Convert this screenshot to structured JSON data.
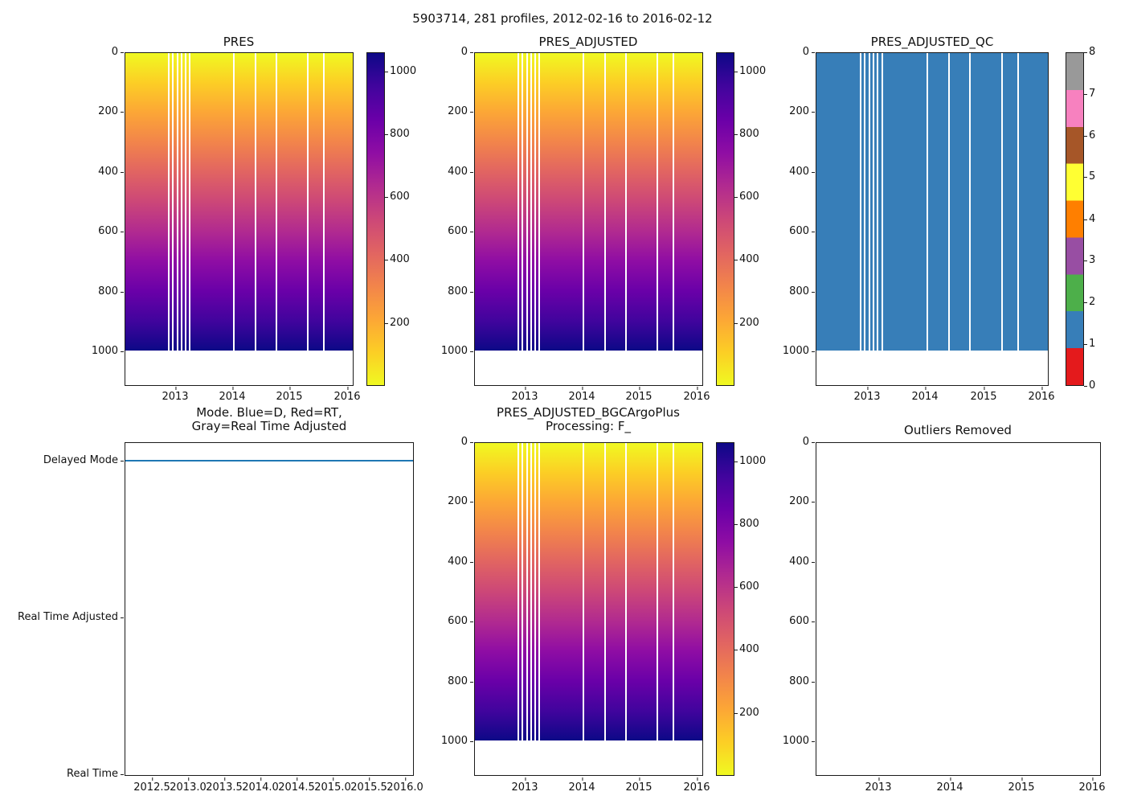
{
  "figure": {
    "suptitle": "5903714, 281 profiles, 2012-02-16 to 2016-02-12"
  },
  "palette": {
    "plasma_stops": [
      "#f0f921",
      "#fcce25",
      "#fca636",
      "#f2844b",
      "#e16462",
      "#cc4778",
      "#b12a90",
      "#8f0da4",
      "#6a00a8",
      "#41049d",
      "#0d0887"
    ],
    "qc_flag_colors": [
      "#e41a1c",
      "#377eb8",
      "#4daf4a",
      "#984ea3",
      "#ff7f00",
      "#ffff33",
      "#a65628",
      "#f781bf",
      "#999999"
    ],
    "mode_line_color": "#1f77b4",
    "qc_fill_color": "#377eb8"
  },
  "chart_data": [
    {
      "id": "pres",
      "type": "heatmap",
      "title": "PRES",
      "x_range": [
        2012.12,
        2016.12
      ],
      "xticks": [
        "2013",
        "2014",
        "2015",
        "2016"
      ],
      "y_range": [
        1115,
        0
      ],
      "y_inverted": true,
      "yticks": [
        "0",
        "200",
        "400",
        "600",
        "800",
        "1000"
      ],
      "colormap": "plasma",
      "colorbar_ticks": [
        "200",
        "400",
        "600",
        "800",
        "1000"
      ],
      "value_range": [
        0,
        1060
      ],
      "max_plotted_depth": 1000,
      "gaps_pct": [
        18.8,
        20.6,
        22.6,
        24.4,
        26.2,
        28.0,
        47.5,
        57.0,
        66.0,
        79.8,
        86.9
      ]
    },
    {
      "id": "pres_adjusted",
      "type": "heatmap",
      "title": "PRES_ADJUSTED",
      "x_range": [
        2012.12,
        2016.12
      ],
      "xticks": [
        "2013",
        "2014",
        "2015",
        "2016"
      ],
      "y_range": [
        1115,
        0
      ],
      "y_inverted": true,
      "yticks": [
        "0",
        "200",
        "400",
        "600",
        "800",
        "1000"
      ],
      "colormap": "plasma",
      "colorbar_ticks": [
        "200",
        "400",
        "600",
        "800",
        "1000"
      ],
      "value_range": [
        0,
        1060
      ],
      "max_plotted_depth": 1000,
      "gaps_pct": [
        18.8,
        20.6,
        22.6,
        24.4,
        26.2,
        28.0,
        47.5,
        57.0,
        66.0,
        79.8,
        86.9
      ]
    },
    {
      "id": "pres_adjusted_qc",
      "type": "heatmap",
      "title": "PRES_ADJUSTED_QC",
      "x_range": [
        2012.12,
        2016.12
      ],
      "xticks": [
        "2013",
        "2014",
        "2015",
        "2016"
      ],
      "y_range": [
        1115,
        0
      ],
      "y_inverted": true,
      "yticks": [
        "0",
        "200",
        "400",
        "600",
        "800",
        "1000"
      ],
      "constant_qc_value": 1,
      "colorbar_ticks": [
        "0",
        "1",
        "2",
        "3",
        "4",
        "5",
        "6",
        "7",
        "8"
      ],
      "colorbar_colors": [
        "#e41a1c",
        "#377eb8",
        "#4daf4a",
        "#984ea3",
        "#ff7f00",
        "#ffff33",
        "#a65628",
        "#f781bf",
        "#999999"
      ],
      "max_plotted_depth": 1000,
      "gaps_pct": [
        18.8,
        20.6,
        22.6,
        24.4,
        26.2,
        28.0,
        47.5,
        57.0,
        66.0,
        79.8,
        86.9
      ]
    },
    {
      "id": "mode",
      "type": "line",
      "title": "Mode. Blue=D, Red=RT,\nGray=Real Time Adjusted",
      "x_range": [
        2012.12,
        2016.12
      ],
      "xticks": [
        "2012.5",
        "2013.0",
        "2013.5",
        "2014.0",
        "2014.5",
        "2015.0",
        "2015.5",
        "2016.0"
      ],
      "ycategories": [
        "Delayed Mode",
        "Real Time Adjusted",
        "Real Time"
      ],
      "series": [
        {
          "name": "mode",
          "constant_category": "Delayed Mode",
          "color": "#1f77b4"
        }
      ]
    },
    {
      "id": "pres_adjusted_bgcargoplus",
      "type": "heatmap",
      "title": "PRES_ADJUSTED_BGCArgoPlus\nProcessing: F_",
      "x_range": [
        2012.12,
        2016.12
      ],
      "xticks": [
        "2013",
        "2014",
        "2015",
        "2016"
      ],
      "y_range": [
        1115,
        0
      ],
      "y_inverted": true,
      "yticks": [
        "0",
        "200",
        "400",
        "600",
        "800",
        "1000"
      ],
      "colormap": "plasma",
      "colorbar_ticks": [
        "200",
        "400",
        "600",
        "800",
        "1000"
      ],
      "value_range": [
        0,
        1060
      ],
      "max_plotted_depth": 1000,
      "gaps_pct": [
        18.8,
        20.6,
        22.6,
        24.4,
        26.2,
        28.0,
        47.5,
        57.0,
        66.0,
        79.8,
        86.9
      ]
    },
    {
      "id": "outliers_removed",
      "type": "empty",
      "title": "Outliers Removed",
      "x_range": [
        2012.12,
        2016.12
      ],
      "xticks": [
        "2013",
        "2014",
        "2015",
        "2016"
      ],
      "y_range": [
        1115,
        0
      ],
      "y_inverted": true,
      "yticks": [
        "0",
        "200",
        "400",
        "600",
        "800",
        "1000"
      ]
    }
  ]
}
